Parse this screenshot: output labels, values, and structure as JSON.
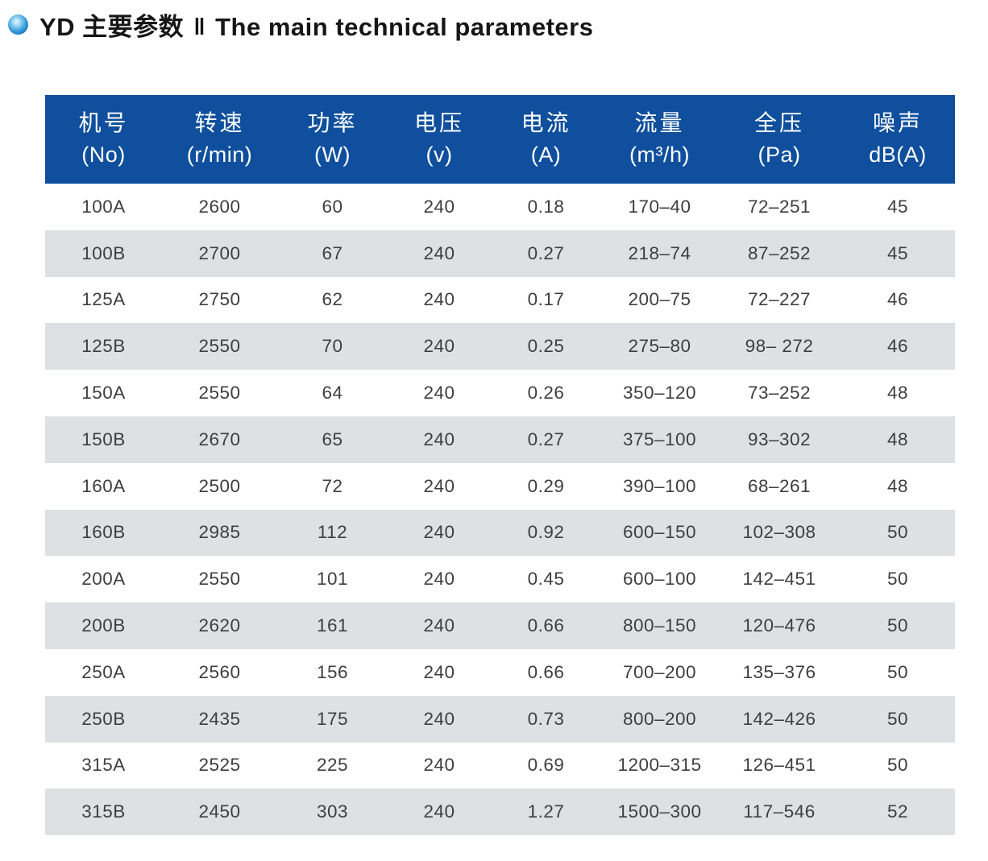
{
  "title": {
    "zh": "YD 主要参数",
    "separator": "‖",
    "en": "The main technical parameters"
  },
  "colors": {
    "header_bg": "#0f4f9d",
    "row_alt_bg": "#dde1e4",
    "title_text": "#161616",
    "cell_text": "#3e3e3e",
    "bullet_blue": "#1176bf"
  },
  "table": {
    "columns": [
      {
        "name": "机号",
        "unit": "(No)"
      },
      {
        "name": "转速",
        "unit": "(r/min)"
      },
      {
        "name": "功率",
        "unit": "(W)"
      },
      {
        "name": "电压",
        "unit": "(v)"
      },
      {
        "name": "电流",
        "unit": "(A)"
      },
      {
        "name": "流量",
        "unit": "(m³/h)"
      },
      {
        "name": "全压",
        "unit": "(Pa)"
      },
      {
        "name": "噪声",
        "unit": "dB(A)"
      }
    ],
    "rows": [
      [
        "100A",
        "2600",
        "60",
        "240",
        "0.18",
        "170–40",
        "72–251",
        "45"
      ],
      [
        "100B",
        "2700",
        "67",
        "240",
        "0.27",
        "218–74",
        "87–252",
        "45"
      ],
      [
        "125A",
        "2750",
        "62",
        "240",
        "0.17",
        "200–75",
        "72–227",
        "46"
      ],
      [
        "125B",
        "2550",
        "70",
        "240",
        "0.25",
        "275–80",
        "98– 272",
        "46"
      ],
      [
        "150A",
        "2550",
        "64",
        "240",
        "0.26",
        "350–120",
        "73–252",
        "48"
      ],
      [
        "150B",
        "2670",
        "65",
        "240",
        "0.27",
        "375–100",
        "93–302",
        "48"
      ],
      [
        "160A",
        "2500",
        "72",
        "240",
        "0.29",
        "390–100",
        "68–261",
        "48"
      ],
      [
        "160B",
        "2985",
        "112",
        "240",
        "0.92",
        "600–150",
        "102–308",
        "50"
      ],
      [
        "200A",
        "2550",
        "101",
        "240",
        "0.45",
        "600–100",
        "142–451",
        "50"
      ],
      [
        "200B",
        "2620",
        "161",
        "240",
        "0.66",
        "800–150",
        "120–476",
        "50"
      ],
      [
        "250A",
        "2560",
        "156",
        "240",
        "0.66",
        "700–200",
        "135–376",
        "50"
      ],
      [
        "250B",
        "2435",
        "175",
        "240",
        "0.73",
        "800–200",
        "142–426",
        "50"
      ],
      [
        "315A",
        "2525",
        "225",
        "240",
        "0.69",
        "1200–315",
        "126–451",
        "50"
      ],
      [
        "315B",
        "2450",
        "303",
        "240",
        "1.27",
        "1500–300",
        "117–546",
        "52"
      ]
    ]
  }
}
